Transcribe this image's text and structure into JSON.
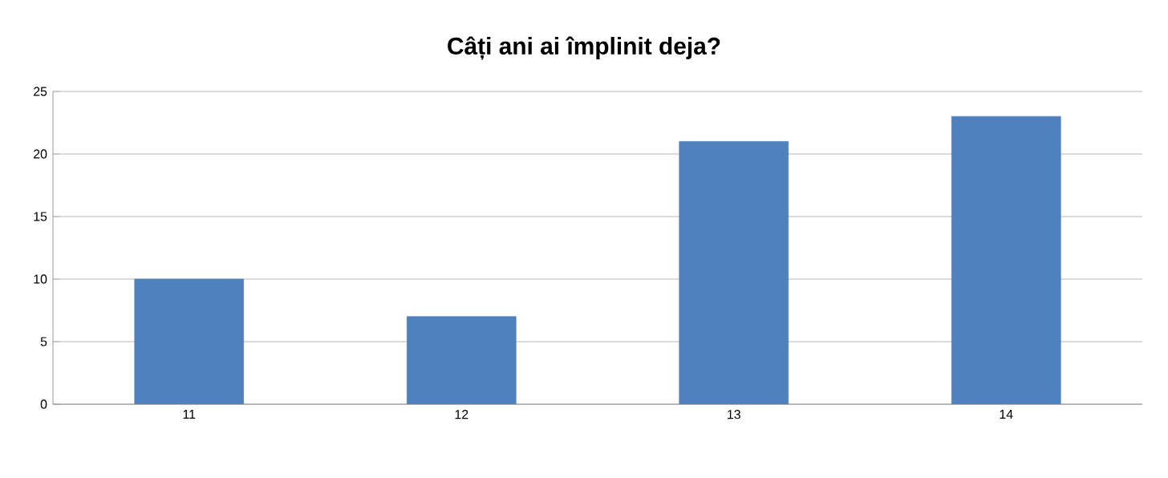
{
  "chart_data": {
    "type": "bar",
    "title": "Câți ani ai împlinit deja?",
    "categories": [
      "11",
      "12",
      "13",
      "14"
    ],
    "values": [
      10,
      7,
      21,
      23
    ],
    "color": "#4f81bd",
    "ylim": [
      0,
      25
    ],
    "yticks": [
      0,
      5,
      10,
      15,
      20,
      25
    ],
    "grid": "y"
  }
}
